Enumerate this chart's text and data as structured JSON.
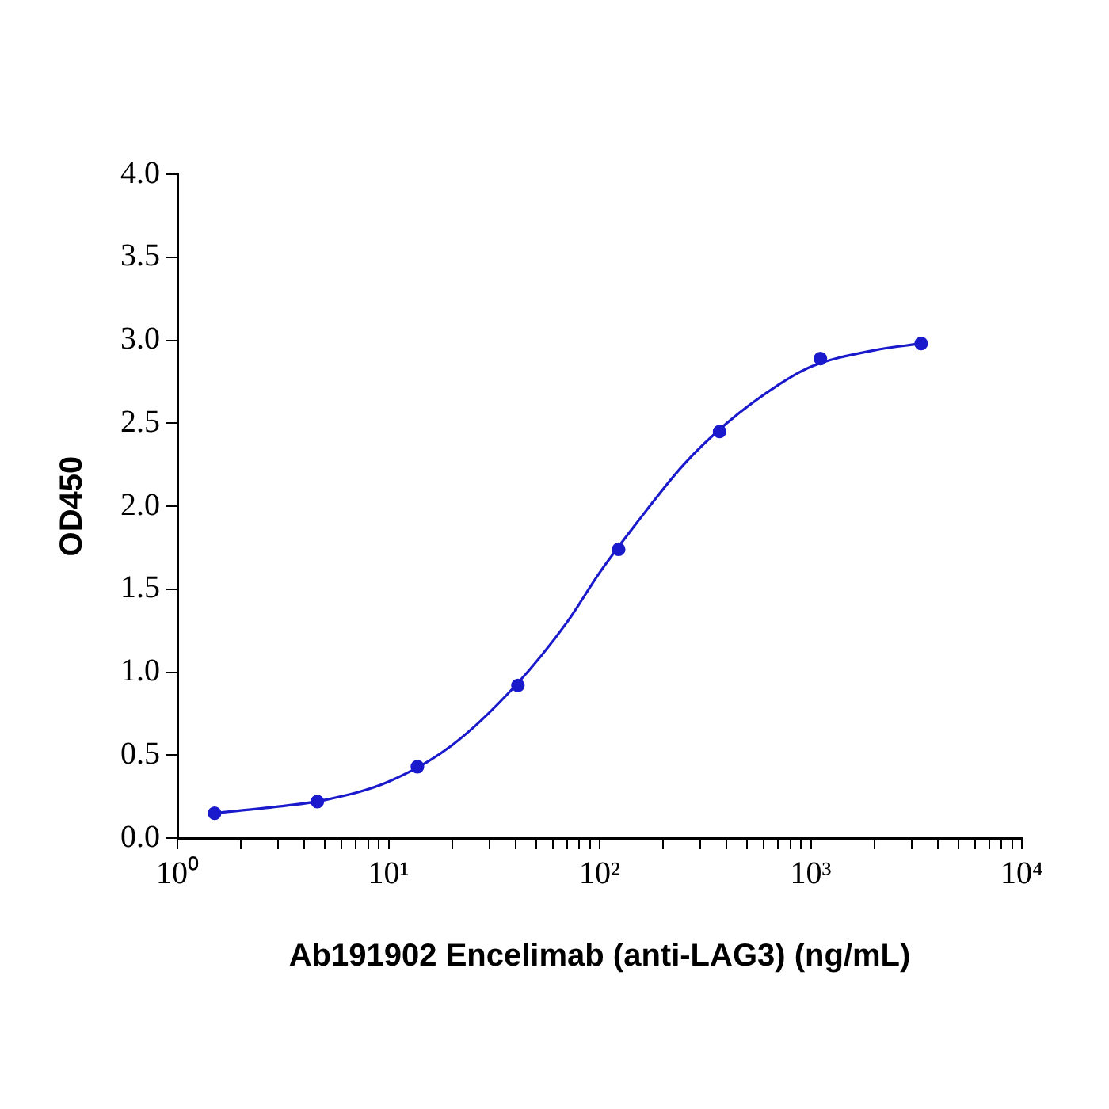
{
  "chart_data": {
    "type": "scatter",
    "xlabel": "Ab191902 Encelimab (anti-LAG3) (ng/mL)",
    "ylabel": "OD450",
    "log": "x",
    "grid": false,
    "legend": false,
    "marker": "circle",
    "xlim": [
      1,
      10000
    ],
    "xticks": [
      {
        "value": 1,
        "label": "10⁰"
      },
      {
        "value": 2,
        "label": null
      },
      {
        "value": 3,
        "label": null
      },
      {
        "value": 4,
        "label": null
      },
      {
        "value": 5,
        "label": null
      },
      {
        "value": 6,
        "label": null
      },
      {
        "value": 7,
        "label": null
      },
      {
        "value": 8,
        "label": null
      },
      {
        "value": 9,
        "label": null
      },
      {
        "value": 10,
        "label": "10¹"
      },
      {
        "value": 20,
        "label": null
      },
      {
        "value": 30,
        "label": null
      },
      {
        "value": 40,
        "label": null
      },
      {
        "value": 50,
        "label": null
      },
      {
        "value": 60,
        "label": null
      },
      {
        "value": 70,
        "label": null
      },
      {
        "value": 80,
        "label": null
      },
      {
        "value": 90,
        "label": null
      },
      {
        "value": 100,
        "label": "10²"
      },
      {
        "value": 200,
        "label": null
      },
      {
        "value": 300,
        "label": null
      },
      {
        "value": 400,
        "label": null
      },
      {
        "value": 500,
        "label": null
      },
      {
        "value": 600,
        "label": null
      },
      {
        "value": 700,
        "label": null
      },
      {
        "value": 800,
        "label": null
      },
      {
        "value": 900,
        "label": null
      },
      {
        "value": 1000,
        "label": "10³"
      },
      {
        "value": 2000,
        "label": null
      },
      {
        "value": 3000,
        "label": null
      },
      {
        "value": 4000,
        "label": null
      },
      {
        "value": 5000,
        "label": null
      },
      {
        "value": 6000,
        "label": null
      },
      {
        "value": 7000,
        "label": null
      },
      {
        "value": 8000,
        "label": null
      },
      {
        "value": 9000,
        "label": null
      },
      {
        "value": 10000,
        "label": "10⁴"
      }
    ],
    "ylim": [
      0,
      4
    ],
    "yticks": [
      {
        "value": 0,
        "label": "0.0"
      },
      {
        "value": 0.5,
        "label": "0.5"
      },
      {
        "value": 1,
        "label": "1.0"
      },
      {
        "value": 1.5,
        "label": "1.5"
      },
      {
        "value": 2,
        "label": "2.0"
      },
      {
        "value": 2.5,
        "label": "2.5"
      },
      {
        "value": 3,
        "label": "3.0"
      },
      {
        "value": 3.5,
        "label": "3.5"
      },
      {
        "value": 4,
        "label": "4.0"
      }
    ],
    "series": [
      {
        "color": "#1a1acc",
        "x": [
          1.5,
          4.6,
          13.7,
          41,
          123,
          370,
          1111,
          3333
        ],
        "values": [
          0.15,
          0.22,
          0.43,
          0.92,
          1.74,
          2.45,
          2.89,
          2.98
        ]
      },
      {
        "type": "line",
        "color": "#1a1acc",
        "marker": "none",
        "x": [
          1.5,
          3,
          5,
          10,
          20,
          40,
          70,
          100,
          150,
          250,
          400,
          700,
          1000,
          2000,
          3333
        ],
        "values": [
          0.15,
          0.19,
          0.23,
          0.34,
          0.56,
          0.92,
          1.3,
          1.6,
          1.9,
          2.25,
          2.5,
          2.73,
          2.84,
          2.94,
          2.98
        ]
      }
    ]
  }
}
